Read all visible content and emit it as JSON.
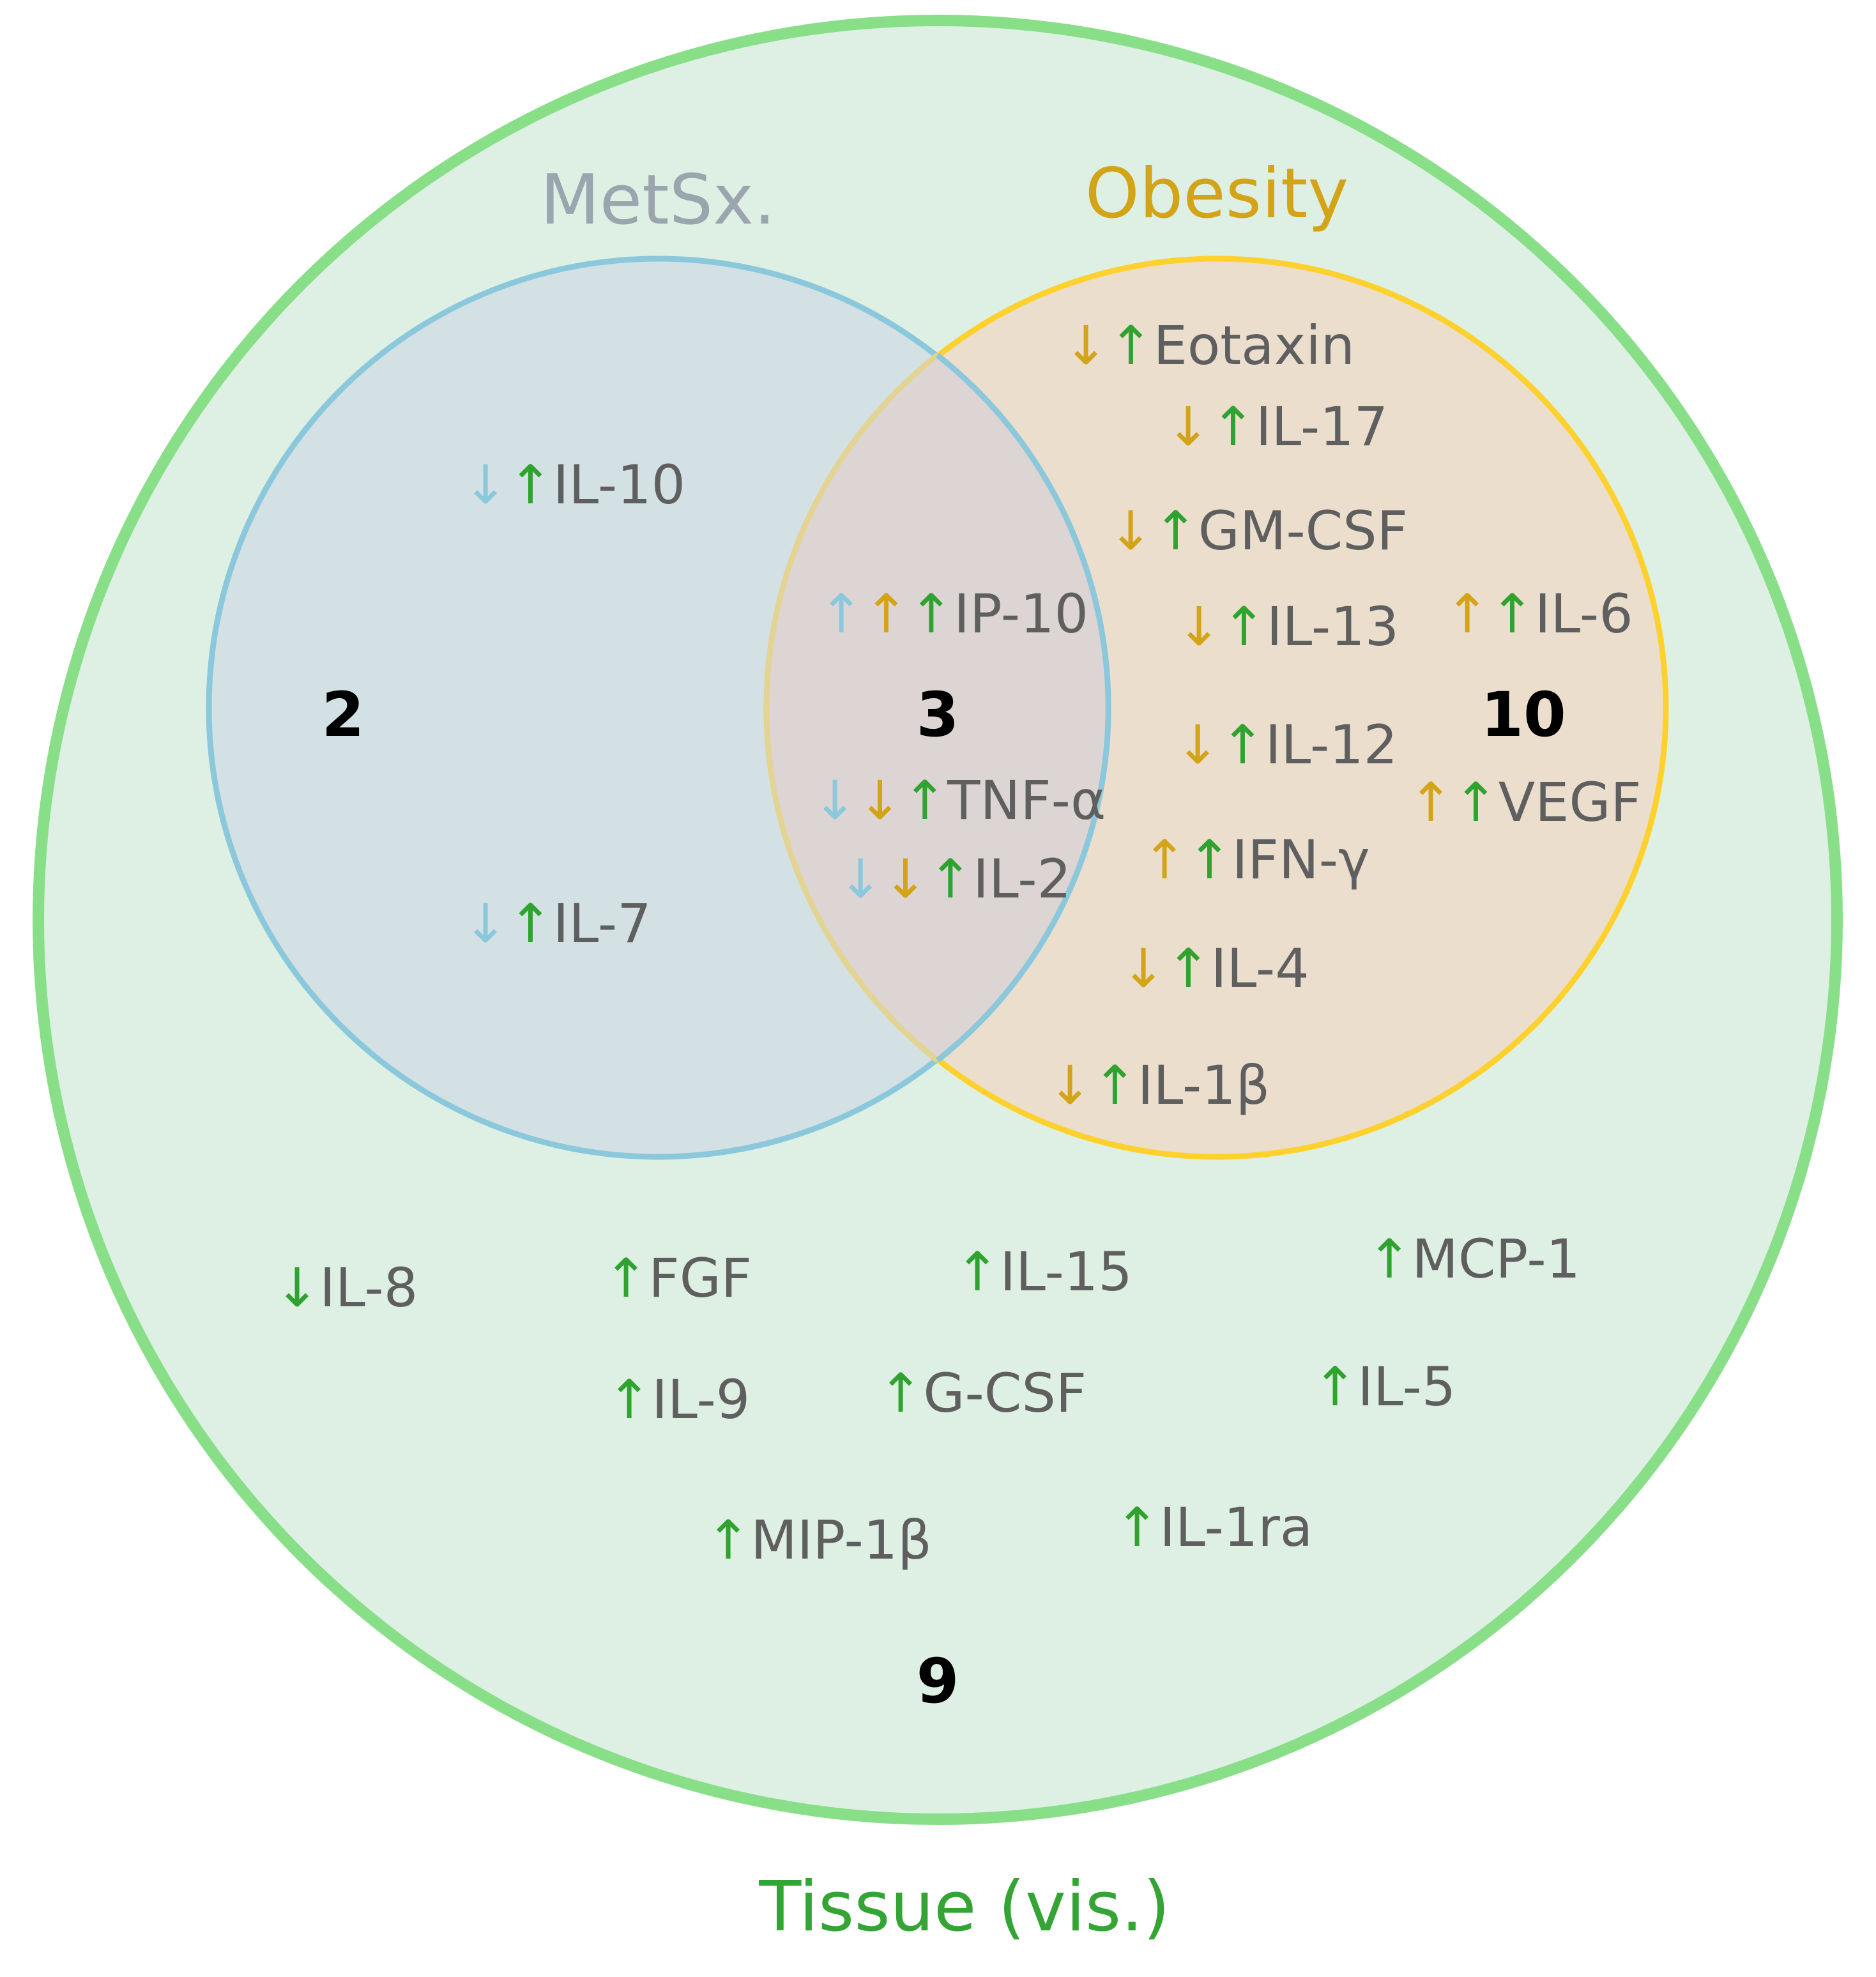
{
  "colors": {
    "metsx": "#8bc8dc",
    "obesity": "#ffd12e",
    "tissue": "#88df88",
    "metsx_label": "#9aa5ad",
    "obesity_label": "#d4a418",
    "tissue_label": "#34a434",
    "arrow_metsx": "#8bc8dc",
    "arrow_obesity": "#d4a418",
    "arrow_tissue": "#2fa22f",
    "item_text": "#5f5f5f"
  },
  "sets": {
    "metsx": "MetSx.",
    "obesity": "Obesity",
    "tissue": "Tissue (vis.)"
  },
  "counts": {
    "metsx_only": "2",
    "metsx_obesity": "3",
    "obesity_only": "10",
    "tissue_only": "9"
  },
  "items": [
    {
      "id": "il-10",
      "label": "IL-10",
      "arrows": [
        {
          "d": "down",
          "c": "metsx"
        },
        {
          "d": "up",
          "c": "tissue"
        }
      ]
    },
    {
      "id": "il-7",
      "label": "IL-7",
      "arrows": [
        {
          "d": "down",
          "c": "metsx"
        },
        {
          "d": "up",
          "c": "tissue"
        }
      ]
    },
    {
      "id": "ip-10",
      "label": "IP-10",
      "arrows": [
        {
          "d": "up",
          "c": "metsx"
        },
        {
          "d": "up",
          "c": "obesity"
        },
        {
          "d": "up",
          "c": "tissue"
        }
      ]
    },
    {
      "id": "tnf-a",
      "label": "TNF-α",
      "arrows": [
        {
          "d": "down",
          "c": "metsx"
        },
        {
          "d": "down",
          "c": "obesity"
        },
        {
          "d": "up",
          "c": "tissue"
        }
      ]
    },
    {
      "id": "il-2",
      "label": "IL-2",
      "arrows": [
        {
          "d": "down",
          "c": "metsx"
        },
        {
          "d": "down",
          "c": "obesity"
        },
        {
          "d": "up",
          "c": "tissue"
        }
      ]
    },
    {
      "id": "eotaxin",
      "label": "Eotaxin",
      "arrows": [
        {
          "d": "down",
          "c": "obesity"
        },
        {
          "d": "up",
          "c": "tissue"
        }
      ]
    },
    {
      "id": "il-17",
      "label": "IL-17",
      "arrows": [
        {
          "d": "down",
          "c": "obesity"
        },
        {
          "d": "up",
          "c": "tissue"
        }
      ]
    },
    {
      "id": "gm-csf",
      "label": "GM-CSF",
      "arrows": [
        {
          "d": "down",
          "c": "obesity"
        },
        {
          "d": "up",
          "c": "tissue"
        }
      ]
    },
    {
      "id": "il-13",
      "label": "IL-13",
      "arrows": [
        {
          "d": "down",
          "c": "obesity"
        },
        {
          "d": "up",
          "c": "tissue"
        }
      ]
    },
    {
      "id": "il-6",
      "label": "IL-6",
      "arrows": [
        {
          "d": "up",
          "c": "obesity"
        },
        {
          "d": "up",
          "c": "tissue"
        }
      ]
    },
    {
      "id": "il-12",
      "label": "IL-12",
      "arrows": [
        {
          "d": "down",
          "c": "obesity"
        },
        {
          "d": "up",
          "c": "tissue"
        }
      ]
    },
    {
      "id": "vegf",
      "label": "VEGF",
      "arrows": [
        {
          "d": "up",
          "c": "obesity"
        },
        {
          "d": "up",
          "c": "tissue"
        }
      ]
    },
    {
      "id": "ifn-g",
      "label": "IFN-γ",
      "arrows": [
        {
          "d": "up",
          "c": "obesity"
        },
        {
          "d": "up",
          "c": "tissue"
        }
      ]
    },
    {
      "id": "il-4",
      "label": "IL-4",
      "arrows": [
        {
          "d": "down",
          "c": "obesity"
        },
        {
          "d": "up",
          "c": "tissue"
        }
      ]
    },
    {
      "id": "il-1b",
      "label": "IL-1β",
      "arrows": [
        {
          "d": "down",
          "c": "obesity"
        },
        {
          "d": "up",
          "c": "tissue"
        }
      ]
    },
    {
      "id": "il-8",
      "label": "IL-8",
      "arrows": [
        {
          "d": "down",
          "c": "tissue"
        }
      ]
    },
    {
      "id": "fgf",
      "label": "FGF",
      "arrows": [
        {
          "d": "up",
          "c": "tissue"
        }
      ]
    },
    {
      "id": "il-15",
      "label": "IL-15",
      "arrows": [
        {
          "d": "up",
          "c": "tissue"
        }
      ]
    },
    {
      "id": "mcp-1",
      "label": "MCP-1",
      "arrows": [
        {
          "d": "up",
          "c": "tissue"
        }
      ]
    },
    {
      "id": "il-9",
      "label": "IL-9",
      "arrows": [
        {
          "d": "up",
          "c": "tissue"
        }
      ]
    },
    {
      "id": "g-csf",
      "label": "G-CSF",
      "arrows": [
        {
          "d": "up",
          "c": "tissue"
        }
      ]
    },
    {
      "id": "il-5",
      "label": "IL-5",
      "arrows": [
        {
          "d": "up",
          "c": "tissue"
        }
      ]
    },
    {
      "id": "mip-1b",
      "label": "MIP-1β",
      "arrows": [
        {
          "d": "up",
          "c": "tissue"
        }
      ]
    },
    {
      "id": "il-1ra",
      "label": "IL-1ra",
      "arrows": [
        {
          "d": "up",
          "c": "tissue"
        }
      ]
    }
  ]
}
